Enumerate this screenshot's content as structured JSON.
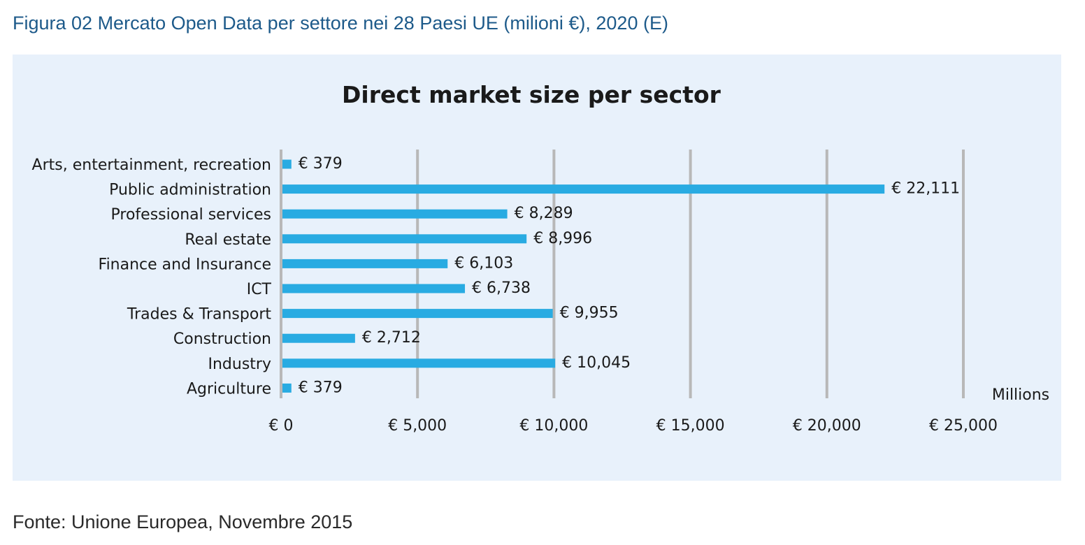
{
  "caption": "Figura 02 Mercato Open Data per settore nei 28 Paesi UE (milioni €), 2020 (E)",
  "source": "Fonte: Unione Europea, Novembre 2015",
  "chart_data": {
    "type": "bar",
    "orientation": "horizontal",
    "title": "Direct market size per sector",
    "xlabel": "Millions",
    "ylabel": "",
    "xlim": [
      0,
      25000
    ],
    "grid": true,
    "legend": "none",
    "bar_color": "#29abe2",
    "grid_color": "#b8b8b8",
    "ticks": [
      {
        "value": 0,
        "label": "€ 0"
      },
      {
        "value": 5000,
        "label": "€ 5,000"
      },
      {
        "value": 10000,
        "label": "€ 10,000"
      },
      {
        "value": 15000,
        "label": "€ 15,000"
      },
      {
        "value": 20000,
        "label": "€ 20,000"
      },
      {
        "value": 25000,
        "label": "€ 25,000"
      }
    ],
    "categories": [
      "Arts, entertainment, recreation",
      "Public administration",
      "Professional services",
      "Real estate",
      "Finance and Insurance",
      "ICT",
      "Trades & Transport",
      "Construction",
      "Industry",
      "Agriculture"
    ],
    "values": [
      379,
      22111,
      8289,
      8996,
      6103,
      6738,
      9955,
      2712,
      10045,
      379
    ],
    "value_labels": [
      "€ 379",
      "€ 22,111",
      "€ 8,289",
      "€ 8,996",
      "€ 6,103",
      "€ 6,738",
      "€ 9,955",
      "€ 2,712",
      "€ 10,045",
      "€ 379"
    ]
  }
}
